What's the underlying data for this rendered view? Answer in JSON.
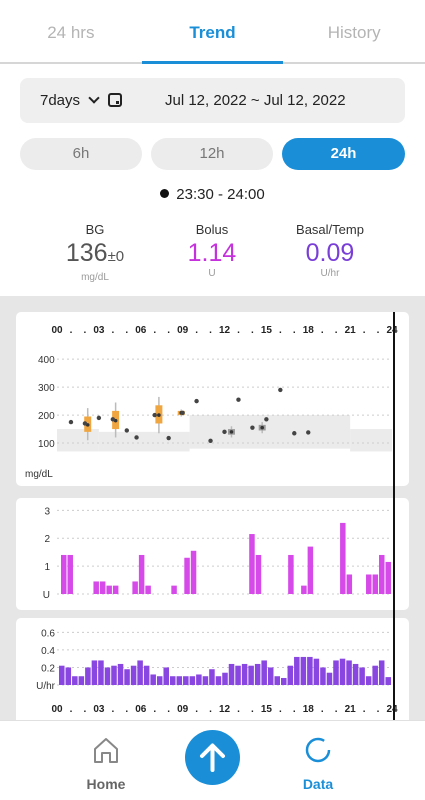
{
  "tabs": [
    {
      "label": "24 hrs",
      "active": false
    },
    {
      "label": "Trend",
      "active": true
    },
    {
      "label": "History",
      "active": false
    }
  ],
  "range": {
    "label": "7days",
    "date_range": "Jul 12, 2022  ~ Jul 12, 2022"
  },
  "window_buttons": [
    {
      "label": "6h",
      "active": false
    },
    {
      "label": "12h",
      "active": false
    },
    {
      "label": "24h",
      "active": true
    }
  ],
  "timeslot": "23:30 - 24:00",
  "stats": {
    "bg": {
      "label": "BG",
      "value": "136",
      "pm": "±0",
      "unit": "mg/dL",
      "color": "#555555"
    },
    "bolus": {
      "label": "Bolus",
      "value": "1.14",
      "unit": "U",
      "color": "#c531dc"
    },
    "basal": {
      "label": "Basal/Temp",
      "value": "0.09",
      "unit": "U/hr",
      "color": "#7a3ed8"
    }
  },
  "colors": {
    "accent": "#1a8fd8",
    "bolus": "#d54ae8",
    "basal": "#8a46e0",
    "bg_box": "#f0a640"
  },
  "nav": {
    "home_label": "Home",
    "data_label": "Data",
    "home_icon": "house-icon",
    "data_icon": "ring-icon",
    "up_icon": "arrow-up-icon"
  },
  "chart_data": [
    {
      "type": "scatter",
      "name": "bg",
      "x_ticks": [
        "00",
        ".",
        ".",
        "03",
        ".",
        ".",
        "06",
        ".",
        ".",
        "09",
        ".",
        ".",
        "12",
        ".",
        ".",
        "15",
        ".",
        ".",
        "18",
        ".",
        ".",
        "21",
        ".",
        ".",
        "24"
      ],
      "y_ticks": [
        "400",
        "300",
        "200",
        "100"
      ],
      "ylabel": "mg/dL",
      "ylim": [
        0,
        440
      ],
      "xlim": [
        0,
        24
      ],
      "target_band": [
        {
          "x0": 0,
          "x1": 3,
          "low": 70,
          "high": 150
        },
        {
          "x0": 3,
          "x1": 9.5,
          "low": 70,
          "high": 140
        },
        {
          "x0": 9.5,
          "x1": 21,
          "low": 80,
          "high": 200
        },
        {
          "x0": 21,
          "x1": 24,
          "low": 70,
          "high": 150
        }
      ],
      "points": [
        {
          "x": 1,
          "y": 175
        },
        {
          "x": 2,
          "y": 170
        },
        {
          "x": 3,
          "y": 190
        },
        {
          "x": 4,
          "y": 185
        },
        {
          "x": 5,
          "y": 145
        },
        {
          "x": 5.7,
          "y": 120
        },
        {
          "x": 7,
          "y": 200
        },
        {
          "x": 8,
          "y": 118
        },
        {
          "x": 9,
          "y": 208
        },
        {
          "x": 10,
          "y": 250
        },
        {
          "x": 11,
          "y": 108
        },
        {
          "x": 12,
          "y": 140
        },
        {
          "x": 13,
          "y": 255
        },
        {
          "x": 14,
          "y": 155
        },
        {
          "x": 15,
          "y": 185
        },
        {
          "x": 16,
          "y": 290
        },
        {
          "x": 17,
          "y": 135
        },
        {
          "x": 18,
          "y": 138
        }
      ],
      "boxes": [
        {
          "x": 2.2,
          "q1": 140,
          "q3": 195,
          "min": 110,
          "max": 225,
          "median": 165,
          "color": "orange"
        },
        {
          "x": 4.2,
          "q1": 150,
          "q3": 215,
          "min": 120,
          "max": 245,
          "median": 180,
          "color": "orange"
        },
        {
          "x": 7.3,
          "q1": 170,
          "q3": 235,
          "min": 135,
          "max": 265,
          "median": 200,
          "color": "orange"
        },
        {
          "x": 8.9,
          "q1": 200,
          "q3": 215,
          "min": 195,
          "max": 220,
          "median": 208,
          "color": "orange"
        },
        {
          "x": 12.5,
          "q1": 130,
          "q3": 150,
          "min": 120,
          "max": 160,
          "median": 140,
          "color": "gray"
        },
        {
          "x": 14.7,
          "q1": 145,
          "q3": 165,
          "min": 135,
          "max": 175,
          "median": 155,
          "color": "gray"
        }
      ]
    },
    {
      "type": "bar",
      "name": "bolus",
      "y_ticks": [
        "3",
        "2",
        "1",
        "U"
      ],
      "ylim": [
        0,
        3.3
      ],
      "values": [
        1.4,
        1.4,
        0,
        0,
        0,
        0.45,
        0.45,
        0.3,
        0.3,
        0,
        0,
        0.45,
        1.4,
        0.3,
        0,
        0,
        0,
        0.3,
        0,
        1.3,
        1.55,
        0,
        0,
        0,
        0,
        0,
        0,
        0,
        0,
        2.15,
        1.4,
        0,
        0,
        0,
        0,
        1.4,
        0,
        0.3,
        1.7,
        0,
        0,
        0,
        0,
        2.55,
        0.7,
        0,
        0,
        0.7,
        0.7,
        1.4,
        1.15
      ]
    },
    {
      "type": "bar",
      "name": "basal",
      "y_ticks": [
        "0.6",
        "0.4",
        "0.2",
        "U/hr"
      ],
      "ylim": [
        0,
        0.65
      ],
      "values": [
        0.22,
        0.2,
        0.1,
        0.1,
        0.2,
        0.28,
        0.28,
        0.2,
        0.22,
        0.24,
        0.18,
        0.22,
        0.28,
        0.22,
        0.12,
        0.1,
        0.2,
        0.1,
        0.1,
        0.1,
        0.1,
        0.12,
        0.1,
        0.18,
        0.1,
        0.14,
        0.24,
        0.22,
        0.24,
        0.22,
        0.24,
        0.28,
        0.2,
        0.1,
        0.08,
        0.22,
        0.32,
        0.32,
        0.32,
        0.3,
        0.2,
        0.14,
        0.28,
        0.3,
        0.28,
        0.24,
        0.2,
        0.1,
        0.22,
        0.28,
        0.09
      ]
    }
  ]
}
